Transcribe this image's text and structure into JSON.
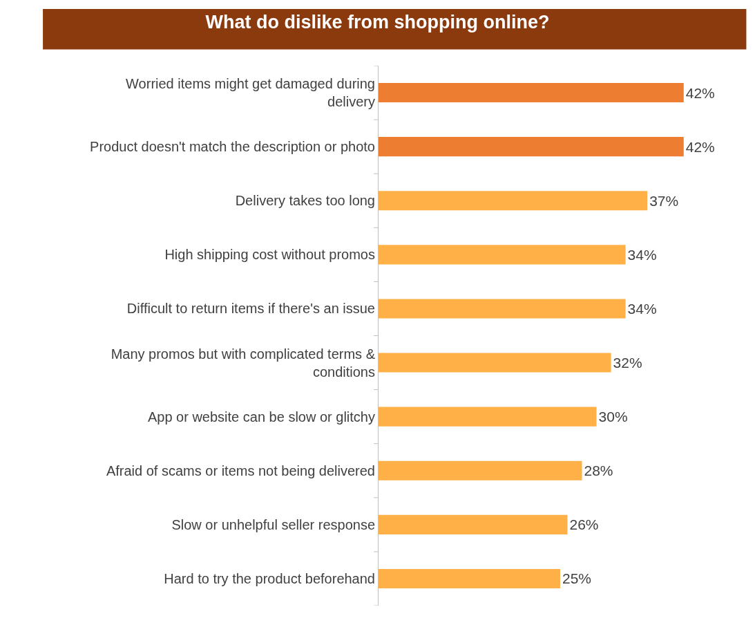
{
  "chart_data": {
    "type": "bar",
    "orientation": "horizontal",
    "title": "What do dislike from shopping online?",
    "categories": [
      "Worried items might get damaged during delivery",
      "Product doesn't match the description or photo",
      "Delivery takes too long",
      "High shipping cost without promos",
      "Difficult to return items if there's an issue",
      "Many promos but with complicated terms & conditions",
      "App or website can be slow or glitchy",
      "Afraid of scams or items not being delivered",
      "Slow or unhelpful seller response",
      "Hard to try the product beforehand"
    ],
    "values": [
      42,
      42,
      37,
      34,
      34,
      32,
      30,
      28,
      26,
      25
    ],
    "value_labels": [
      "42%",
      "42%",
      "37%",
      "34%",
      "34%",
      "32%",
      "30%",
      "28%",
      "26%",
      "25%"
    ],
    "colors": [
      "#ed7d31",
      "#ed7d31",
      "#ffb047",
      "#ffb047",
      "#ffb047",
      "#ffb047",
      "#ffb047",
      "#ffb047",
      "#ffb047",
      "#ffb047"
    ],
    "tick_labels": "y"
  }
}
